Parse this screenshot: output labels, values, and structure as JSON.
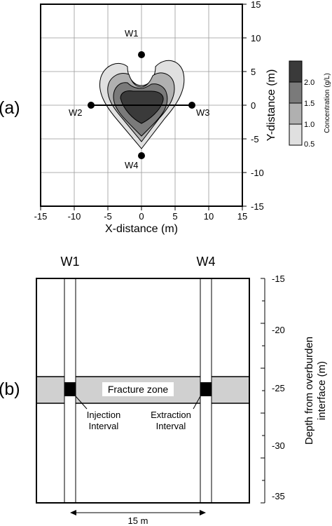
{
  "panel_a": {
    "label": "(a)",
    "xlabel": "X-distance (m)",
    "ylabel": "Y-distance (m)",
    "x_ticks": [
      "-15",
      "-10",
      "-5",
      "0",
      "5",
      "10",
      "15"
    ],
    "y_ticks": [
      "15",
      "10",
      "5",
      "0",
      "-5",
      "-10",
      "-15"
    ],
    "wells": [
      {
        "name": "W1",
        "x": 0,
        "y": 7.5
      },
      {
        "name": "W2",
        "x": -7.5,
        "y": 0
      },
      {
        "name": "W3",
        "x": 7.5,
        "y": 0
      },
      {
        "name": "W4",
        "x": 0,
        "y": -7.5
      }
    ],
    "legend": {
      "title": "Concentration (g/L)",
      "levels": [
        {
          "label": "2.0",
          "color": "#3a3a3a"
        },
        {
          "label": "1.5",
          "color": "#7a7a7a"
        },
        {
          "label": "1.0",
          "color": "#b0b0b0"
        },
        {
          "label": "0.5",
          "color": "#e0e0e0"
        }
      ]
    }
  },
  "panel_b": {
    "label": "(b)",
    "well_labels": [
      "W1",
      "W4"
    ],
    "ylabel_line1": "Depth from overburden",
    "ylabel_line2": "interface (m)",
    "depth_ticks": [
      "-15",
      "-20",
      "-25",
      "-30",
      "-35"
    ],
    "fracture_label": "Fracture zone",
    "injection_line1": "Injection",
    "injection_line2": "Interval",
    "extraction_line1": "Extraction",
    "extraction_line2": "Interval",
    "spacing_label": "15 m",
    "fracture_color": "#d0d0d0"
  }
}
